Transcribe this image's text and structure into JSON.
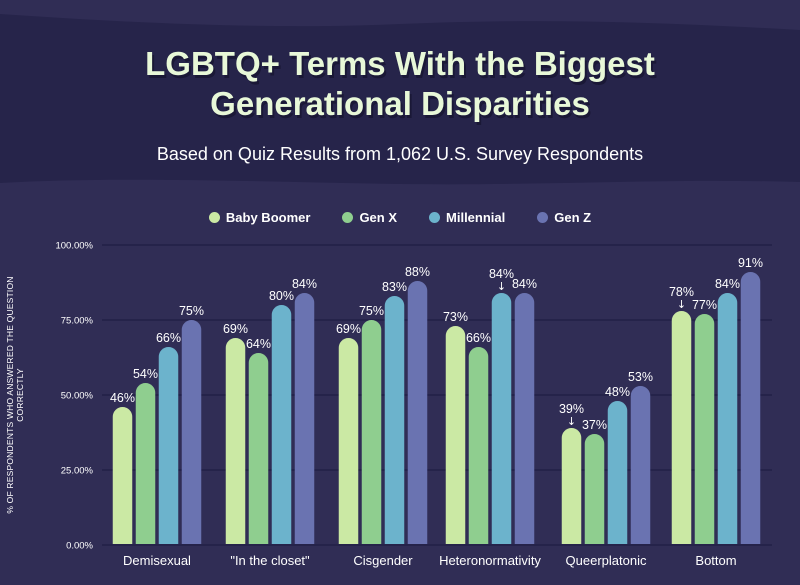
{
  "chart_data": {
    "type": "bar",
    "title": "LGBTQ+ Terms With the Biggest Generational Disparities",
    "title_lines": [
      "LGBTQ+ Terms With the Biggest",
      "Generational Disparities"
    ],
    "subtitle": "Based on Quiz Results from 1,062 U.S. Survey Respondents",
    "xlabel": "",
    "ylabel": "% OF RESPONDENTS WHO ANSWERED THE QUESTION CORRECTLY",
    "ylim": [
      0,
      100
    ],
    "yticks": [
      "100.00%",
      "75.00%",
      "50.00%",
      "25.00%",
      "0.00%"
    ],
    "ytick_values": [
      100,
      75,
      50,
      25,
      0
    ],
    "grid": true,
    "legend_position": "top-center",
    "categories": [
      "Demisexual",
      "\"In the closet\"",
      "Cisgender",
      "Heteronormativity",
      "Queerplatonic",
      "Bottom"
    ],
    "series": [
      {
        "name": "Baby Boomer",
        "color": "#cbe9a4",
        "values": [
          46,
          69,
          69,
          73,
          39,
          78
        ]
      },
      {
        "name": "Gen X",
        "color": "#8fce8f",
        "values": [
          54,
          64,
          75,
          66,
          37,
          77
        ]
      },
      {
        "name": "Millennial",
        "color": "#6cb3cc",
        "values": [
          66,
          80,
          83,
          84,
          48,
          84
        ]
      },
      {
        "name": "Gen Z",
        "color": "#6a73b1",
        "values": [
          75,
          84,
          88,
          84,
          53,
          91
        ]
      }
    ],
    "annotations": [
      {
        "category": "Heteronormativity",
        "series": "Millennial",
        "text": "↓"
      },
      {
        "category": "Queerplatonic",
        "series": "Baby Boomer",
        "text": "↓"
      },
      {
        "category": "Bottom",
        "series": "Baby Boomer",
        "text": "↓"
      }
    ]
  },
  "colors": {
    "background": "#302d55",
    "header_background": "#26244a",
    "title": "#e8f8d8",
    "text": "#ffffff",
    "gridline": "#25234a"
  }
}
